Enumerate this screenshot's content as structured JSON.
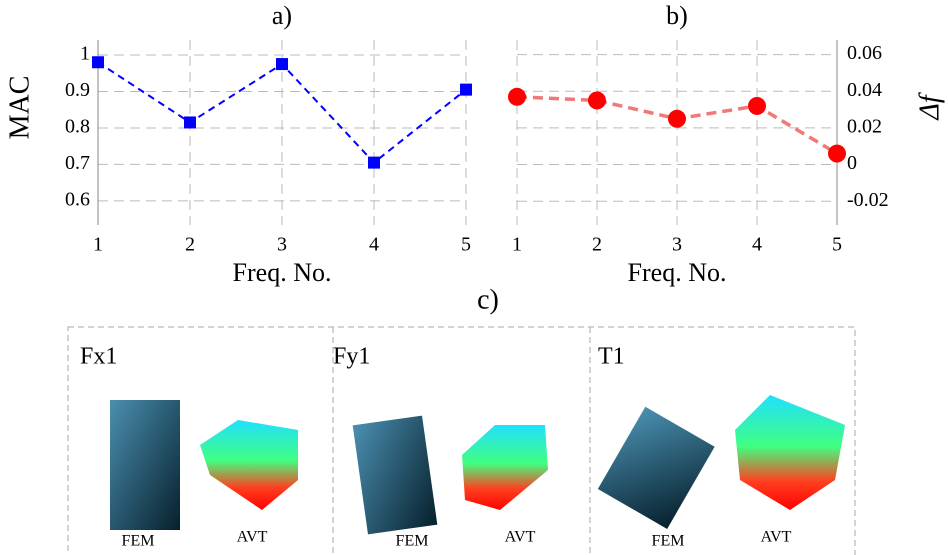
{
  "chart_data": [
    {
      "type": "line",
      "title": "a)",
      "xlabel": "Freq. No.",
      "ylabel": "MAC",
      "x": [
        1,
        2,
        3,
        4,
        5
      ],
      "xlim": [
        1,
        5
      ],
      "xticks": [
        1,
        2,
        3,
        4,
        5
      ],
      "ylim": [
        0.534,
        1.041
      ],
      "yticks": [
        0.6,
        0.7,
        0.8,
        0.9,
        1
      ],
      "grid": true,
      "series": [
        {
          "color": "#0000ff",
          "line_color": "#0000ff",
          "marker": "square",
          "linestyle": "dashed",
          "values": [
            0.98,
            0.815,
            0.975,
            0.705,
            0.905
          ]
        }
      ]
    },
    {
      "type": "line",
      "title": "b)",
      "xlabel": "Freq. No.",
      "y2label": "Δf",
      "x": [
        1,
        2,
        3,
        4,
        5
      ],
      "xlim": [
        1,
        5
      ],
      "xticks": [
        1,
        2,
        3,
        4,
        5
      ],
      "y2lim": [
        -0.033,
        0.068
      ],
      "y2ticks": [
        -0.02,
        0,
        0.02,
        0.04,
        0.06
      ],
      "grid": true,
      "series": [
        {
          "color": "#ff0000",
          "line_color": "#f07878",
          "marker": "circle",
          "linestyle": "dashed",
          "axis": "y2",
          "values": [
            0.037,
            0.035,
            0.025,
            0.032,
            0.006
          ]
        }
      ]
    }
  ],
  "panel_c": {
    "title": "c)",
    "cases": [
      {
        "label": "Fx1",
        "left": "FEM",
        "right": "AVT"
      },
      {
        "label": "Fy1",
        "left": "FEM",
        "right": "AVT"
      },
      {
        "label": "T1",
        "left": "FEM",
        "right": "AVT"
      }
    ]
  }
}
